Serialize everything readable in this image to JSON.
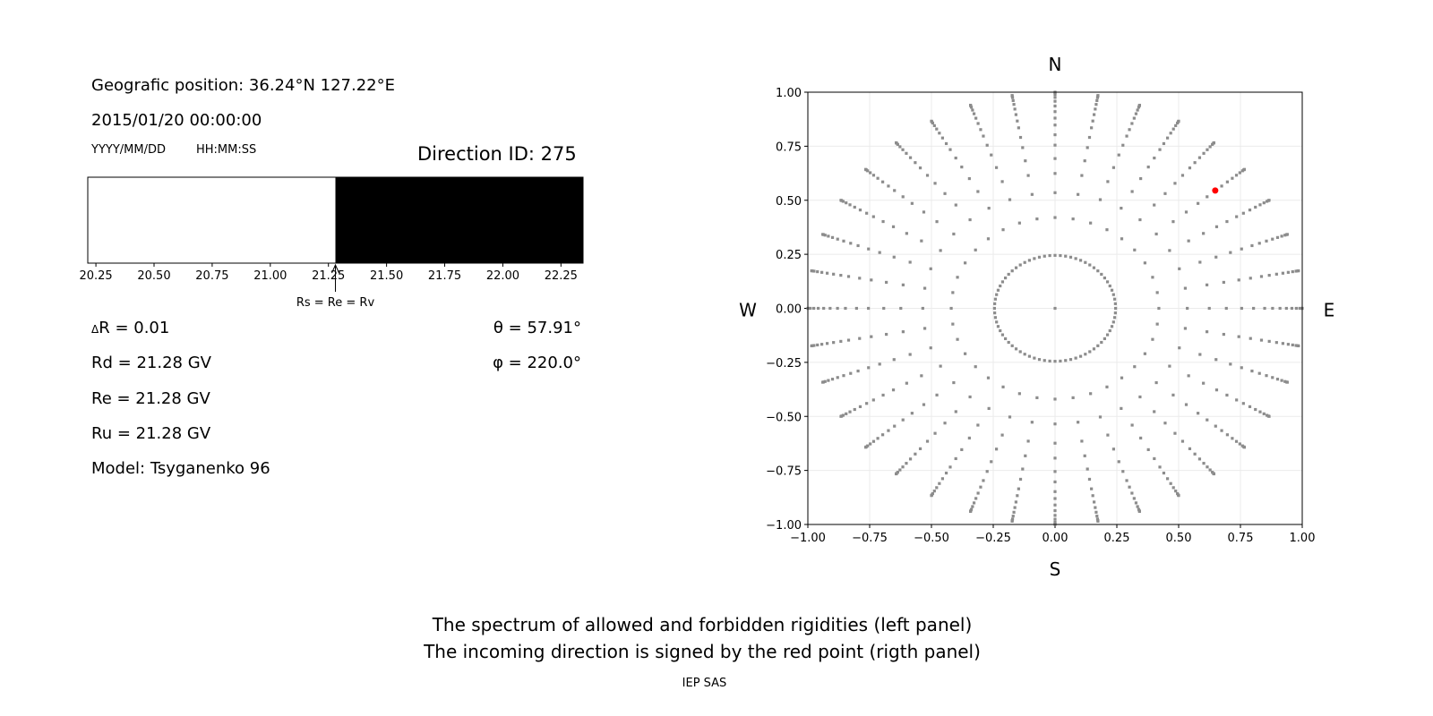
{
  "left_panel": {
    "position_label": "Geografic position: 36.24°N 127.22°E",
    "datetime": "2015/01/20 00:00:00",
    "date_format": "YYYY/MM/DD",
    "time_format": "HH:MM:SS",
    "direction_id": "Direction ID: 275",
    "delta_r_symbol": "Δ",
    "delta_r": "R = 0.01",
    "rd": "Rd = 21.28 GV",
    "re": "Re = 21.28 GV",
    "ru": "Ru = 21.28 GV",
    "model": "Model: Tsyganenko 96",
    "theta": "θ = 57.91°",
    "phi": "φ = 220.0°",
    "arrow_label": "Rs = Re = Rv"
  },
  "chart_data": [
    {
      "type": "bar",
      "description_colors": {
        "allowed": "#ffffff",
        "forbidden": "#000000"
      },
      "xlim": [
        20.215,
        22.345
      ],
      "xticks": [
        "20.25",
        "20.50",
        "20.75",
        "21.00",
        "21.25",
        "21.50",
        "21.75",
        "22.00",
        "22.25"
      ],
      "segments": [
        {
          "from": 20.215,
          "to": 21.28,
          "color": "#ffffff"
        },
        {
          "from": 21.28,
          "to": 22.345,
          "color": "#000000"
        }
      ],
      "annotation": {
        "x": 21.28
      }
    },
    {
      "type": "scatter",
      "xlim": [
        -1,
        1
      ],
      "ylim": [
        -1,
        1
      ],
      "xticks": [
        "−1.00",
        "−0.75",
        "−0.50",
        "−0.25",
        "0.00",
        "0.25",
        "0.50",
        "0.75",
        "1.00"
      ],
      "yticks": [
        "−1.00",
        "−0.75",
        "−0.50",
        "−0.25",
        "0.00",
        "0.25",
        "0.50",
        "0.75",
        "1.00"
      ],
      "grid": true,
      "compass": {
        "n": "N",
        "s": "S",
        "e": "E",
        "w": "W"
      },
      "point_color": "#8c8c8c",
      "highlight_color": "#ff0000",
      "ray_azimuth_step_deg": 10,
      "inner_ring": {
        "radius": 0.245,
        "azimuth_step_deg": 5
      },
      "ray_radii": [
        0.42,
        0.535,
        0.624,
        0.693,
        0.755,
        0.803,
        0.848,
        0.88,
        0.91,
        0.936,
        0.958,
        0.976,
        0.99,
        0.997,
        1.0
      ],
      "highlight": {
        "x": 0.648,
        "y": 0.545
      }
    }
  ],
  "footer": {
    "line1": "The spectrum of allowed and forbidden rigidities (left panel)",
    "line2": "The incoming direction is signed by the red point (rigth panel)",
    "credit": "IEP SAS"
  }
}
